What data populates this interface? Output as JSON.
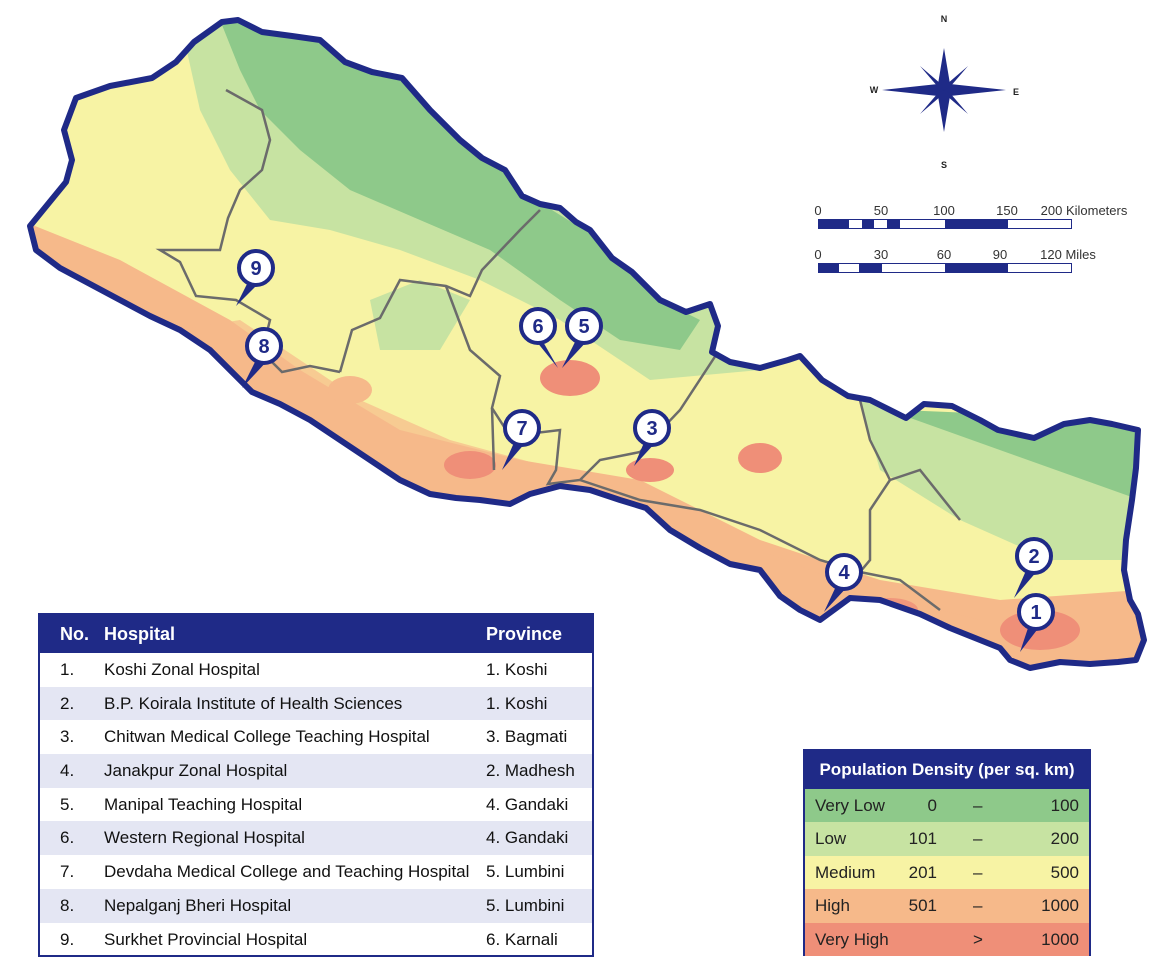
{
  "map": {
    "compass": {
      "n": "N",
      "s": "S",
      "e": "E",
      "w": "W"
    },
    "scale_km": {
      "labels": [
        "0",
        "50",
        "100",
        "150",
        "200 Kilometers"
      ]
    },
    "scale_mi": {
      "labels": [
        "0",
        "30",
        "60",
        "90",
        "120 Miles"
      ]
    },
    "markers": [
      "1",
      "2",
      "3",
      "4",
      "5",
      "6",
      "7",
      "8",
      "9"
    ],
    "colors": {
      "boundary": "#1f2a87",
      "province_line": "#6b6b6b",
      "very_low": "#8ec98a",
      "low": "#c7e3a2",
      "medium": "#f7f3a4",
      "high": "#f6b98a",
      "very_high": "#ef8f78"
    }
  },
  "table": {
    "headers": {
      "no": "No.",
      "hospital": "Hospital",
      "province": "Province"
    },
    "rows": [
      {
        "no": "1.",
        "hospital": "Koshi Zonal Hospital",
        "province": "1. Koshi"
      },
      {
        "no": "2.",
        "hospital": "B.P. Koirala Institute of Health Sciences",
        "province": "1. Koshi"
      },
      {
        "no": "3.",
        "hospital": "Chitwan Medical College Teaching Hospital",
        "province": "3. Bagmati"
      },
      {
        "no": "4.",
        "hospital": "Janakpur Zonal Hospital",
        "province": "2. Madhesh"
      },
      {
        "no": "5.",
        "hospital": "Manipal Teaching Hospital",
        "province": "4. Gandaki"
      },
      {
        "no": "6.",
        "hospital": "Western Regional Hospital",
        "province": "4. Gandaki"
      },
      {
        "no": "7.",
        "hospital": "Devdaha Medical College and Teaching Hospital",
        "province": "5. Lumbini"
      },
      {
        "no": "8.",
        "hospital": "Nepalganj Bheri Hospital",
        "province": "5. Lumbini"
      },
      {
        "no": "9.",
        "hospital": "Surkhet Provincial Hospital",
        "province": "6. Karnali"
      }
    ]
  },
  "legend": {
    "title": "Population Density (per sq. km)",
    "rows": [
      {
        "label": "Very Low",
        "min": "0",
        "sep": "–",
        "max": "100",
        "color": "#8ec98a"
      },
      {
        "label": "Low",
        "min": "101",
        "sep": "–",
        "max": "200",
        "color": "#c7e3a2"
      },
      {
        "label": "Medium",
        "min": "201",
        "sep": "–",
        "max": "500",
        "color": "#f7f3a4"
      },
      {
        "label": "High",
        "min": "501",
        "sep": "–",
        "max": "1000",
        "color": "#f6b98a"
      },
      {
        "label": "Very High",
        "min": "",
        "sep": ">",
        "max": "1000",
        "color": "#ef8f78"
      }
    ]
  }
}
